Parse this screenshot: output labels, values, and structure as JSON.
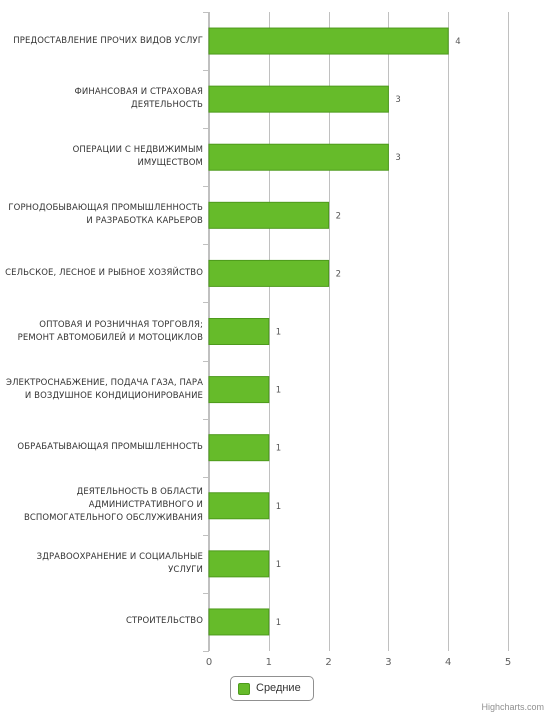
{
  "chart_data": {
    "type": "bar",
    "orientation": "horizontal",
    "categories": [
      "ПРЕДОСТАВЛЕНИЕ ПРОЧИХ ВИДОВ УСЛУГ",
      "ФИНАНСОВАЯ И СТРАХОВАЯ ДЕЯТЕЛЬНОСТЬ",
      "ОПЕРАЦИИ С НЕДВИЖИМЫМ ИМУЩЕСТВОМ",
      "ГОРНОДОБЫВАЮЩАЯ ПРОМЫШЛЕННОСТЬ И РАЗРАБОТКА КАРЬЕРОВ",
      "СЕЛЬСКОЕ, ЛЕСНОЕ И РЫБНОЕ ХОЗЯЙСТВО",
      "ОПТОВАЯ И РОЗНИЧНАЯ ТОРГОВЛЯ; РЕМОНТ АВТОМОБИЛЕЙ И МОТОЦИКЛОВ",
      "ЭЛЕКТРОСНАБЖЕНИЕ, ПОДАЧА ГАЗА, ПАРА И ВОЗДУШНОЕ КОНДИЦИОНИРОВАНИЕ",
      "ОБРАБАТЫВАЮЩАЯ ПРОМЫШЛЕННОСТЬ",
      "ДЕЯТЕЛЬНОСТЬ В ОБЛАСТИ АДМИНИСТРАТИВНОГО И ВСПОМОГАТЕЛЬНОГО ОБСЛУЖИВАНИЯ",
      "ЗДРАВООХРАНЕНИЕ И СОЦИАЛЬНЫЕ УСЛУГИ",
      "СТРОИТЕЛЬСТВО"
    ],
    "category_lines": [
      [
        "ПРЕДОСТАВЛЕНИЕ ПРОЧИХ ВИДОВ УСЛУГ"
      ],
      [
        "ФИНАНСОВАЯ И СТРАХОВАЯ",
        "ДЕЯТЕЛЬНОСТЬ"
      ],
      [
        "ОПЕРАЦИИ С НЕДВИЖИМЫМ",
        "ИМУЩЕСТВОМ"
      ],
      [
        "ГОРНОДОБЫВАЮЩАЯ ПРОМЫШЛЕННОСТЬ",
        "И РАЗРАБОТКА КАРЬЕРОВ"
      ],
      [
        "СЕЛЬСКОЕ, ЛЕСНОЕ И РЫБНОЕ ХОЗЯЙСТВО"
      ],
      [
        "ОПТОВАЯ И РОЗНИЧНАЯ ТОРГОВЛЯ;",
        "РЕМОНТ АВТОМОБИЛЕЙ И МОТОЦИКЛОВ"
      ],
      [
        "ЭЛЕКТРОСНАБЖЕНИЕ, ПОДАЧА ГАЗА, ПАРА",
        "И ВОЗДУШНОЕ КОНДИЦИОНИРОВАНИЕ"
      ],
      [
        "ОБРАБАТЫВАЮЩАЯ ПРОМЫШЛЕННОСТЬ"
      ],
      [
        "ДЕЯТЕЛЬНОСТЬ В ОБЛАСТИ",
        "АДМИНИСТРАТИВНОГО И",
        "ВСПОМОГАТЕЛЬНОГО ОБСЛУЖИВАНИЯ"
      ],
      [
        "ЗДРАВООХРАНЕНИЕ И СОЦИАЛЬНЫЕ",
        "УСЛУГИ"
      ],
      [
        "СТРОИТЕЛЬСТВО"
      ]
    ],
    "series": [
      {
        "name": "Средние",
        "values": [
          4,
          3,
          3,
          2,
          2,
          1,
          1,
          1,
          1,
          1,
          1
        ]
      }
    ],
    "xlim": [
      0,
      5
    ],
    "xticks": [
      "0",
      "1",
      "2",
      "3",
      "4",
      "5"
    ],
    "grid": true,
    "data_labels": true,
    "legend_position": "bottom-center",
    "colors": {
      "bar": "#66bb2a",
      "bar_border": "#4d9a1c",
      "grid": "#c0c0c0",
      "axis_text": "#606060"
    }
  },
  "legend": {
    "label": "Средние"
  },
  "credits": "Highcharts.com"
}
